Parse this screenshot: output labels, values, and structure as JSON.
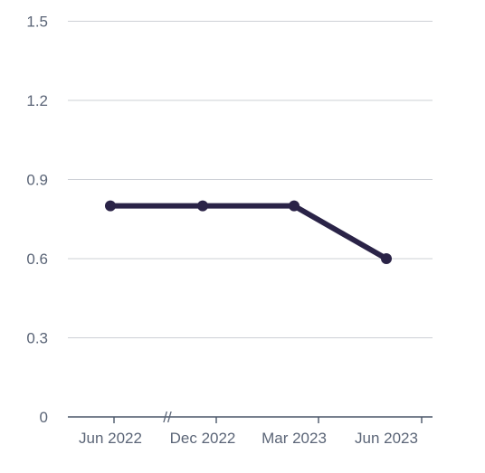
{
  "chart_data": {
    "type": "line",
    "title": "",
    "xlabel": "",
    "ylabel": "",
    "categories": [
      "Jun 2022",
      "Dec 2022",
      "Mar 2023",
      "Jun 2023"
    ],
    "series": [
      {
        "values": [
          0.8,
          0.8,
          0.8,
          0.6
        ],
        "color": "#2a2347"
      }
    ],
    "ylim": [
      0,
      1.5
    ],
    "yticks": [
      "0",
      "0.3",
      "0.6",
      "0.9",
      "1.2",
      "1.5"
    ],
    "grid": true,
    "axis_break_marker": "//"
  }
}
